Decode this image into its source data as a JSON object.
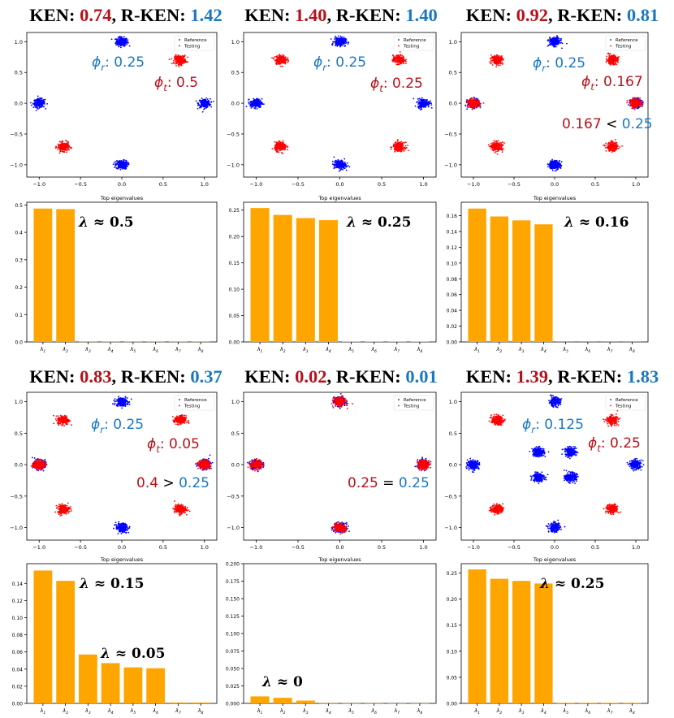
{
  "labels": {
    "ken": "KEN: ",
    "rken": "R-KEN: ",
    "sep": ", "
  },
  "colors": {
    "reference": "#0000ff",
    "testing": "#ff0000",
    "bar": "#ffa500",
    "ken_value": "#b5121b",
    "rken_value": "#1a78c2",
    "annotation_black": "#000000"
  },
  "chart_data": [
    {
      "type": "scatter",
      "panel": "row1-col1",
      "title": {
        "ken": "0.74",
        "rken": "1.42"
      },
      "legend": [
        "Reference",
        "Testing"
      ],
      "legend_position": "top-right",
      "xlim": [
        -1.15,
        1.15
      ],
      "ylim": [
        -1.2,
        1.15
      ],
      "xticks": [
        "-1.0",
        "-0.5",
        "0.0",
        "0.5",
        "1.0"
      ],
      "yticks": [
        "-1.0",
        "-0.5",
        "0.0",
        "0.5",
        "1.0"
      ],
      "reference_clusters": [
        [
          0,
          1
        ],
        [
          -1,
          0
        ],
        [
          1,
          0
        ],
        [
          0,
          -1
        ]
      ],
      "testing_clusters": [
        [
          0.707,
          0.707
        ],
        [
          -0.707,
          -0.707
        ]
      ],
      "annotations": [
        "ϕr: 0.25",
        "ϕt: 0.5"
      ]
    },
    {
      "type": "scatter",
      "panel": "row1-col2",
      "title": {
        "ken": "1.40",
        "rken": "1.40"
      },
      "legend": [
        "Reference",
        "Testing"
      ],
      "legend_position": "top-right",
      "xlim": [
        -1.15,
        1.15
      ],
      "ylim": [
        -1.2,
        1.15
      ],
      "xticks": [
        "-1.0",
        "-0.5",
        "0.0",
        "0.5",
        "1.0"
      ],
      "yticks": [
        "-1.0",
        "-0.5",
        "0.0",
        "0.5",
        "1.0"
      ],
      "reference_clusters": [
        [
          0,
          1
        ],
        [
          -1,
          0
        ],
        [
          1,
          0
        ],
        [
          0,
          -1
        ]
      ],
      "testing_clusters": [
        [
          0.707,
          0.707
        ],
        [
          -0.707,
          0.707
        ],
        [
          -0.707,
          -0.707
        ],
        [
          0.707,
          -0.707
        ]
      ],
      "annotations": [
        "ϕr: 0.25",
        "ϕt: 0.25"
      ]
    },
    {
      "type": "scatter",
      "panel": "row1-col3",
      "title": {
        "ken": "0.92",
        "rken": "0.81"
      },
      "legend": [
        "Reference",
        "Testing"
      ],
      "legend_position": "top-right",
      "xlim": [
        -1.15,
        1.15
      ],
      "ylim": [
        -1.2,
        1.15
      ],
      "xticks": [
        "-1.0",
        "-0.5",
        "0.0",
        "0.5",
        "1.0"
      ],
      "yticks": [
        "-1.0",
        "-0.5",
        "0.0",
        "0.5",
        "1.0"
      ],
      "reference_clusters": [
        [
          0,
          1
        ],
        [
          -1,
          0
        ],
        [
          1,
          0
        ],
        [
          0,
          -1
        ]
      ],
      "testing_clusters": [
        [
          0.707,
          0.707
        ],
        [
          -0.707,
          0.707
        ],
        [
          -0.707,
          -0.707
        ],
        [
          0.707,
          -0.707
        ],
        [
          -1,
          0
        ],
        [
          1,
          0
        ]
      ],
      "annotations": [
        "ϕr: 0.25",
        "ϕt: 0.167",
        "0.167 < 0.25"
      ]
    },
    {
      "type": "bar",
      "panel": "row2-col1",
      "title": "Top eigenvalues",
      "categories": [
        "λ1",
        "λ2",
        "λ3",
        "λ4",
        "λ5",
        "λ6",
        "λ7",
        "λ8"
      ],
      "values": [
        0.487,
        0.485,
        0.001,
        0.001,
        0.001,
        0.001,
        0.001,
        0.001
      ],
      "ylim": [
        0,
        0.51
      ],
      "yticks": [
        "0.0",
        "0.1",
        "0.2",
        "0.3",
        "0.4",
        "0.5"
      ],
      "annotation": "λ ≈ 0.5"
    },
    {
      "type": "bar",
      "panel": "row2-col2",
      "title": "Top eigenvalues",
      "categories": [
        "λ1",
        "λ2",
        "λ3",
        "λ4",
        "λ5",
        "λ6",
        "λ7",
        "λ8"
      ],
      "values": [
        0.254,
        0.241,
        0.235,
        0.231,
        0.001,
        0.001,
        0.001,
        0.001
      ],
      "ylim": [
        0,
        0.265
      ],
      "yticks": [
        "0.00",
        "0.05",
        "0.10",
        "0.15",
        "0.20",
        "0.25"
      ],
      "annotation": "λ ≈ 0.25"
    },
    {
      "type": "bar",
      "panel": "row2-col3",
      "title": "Top eigenvalues",
      "categories": [
        "λ1",
        "λ2",
        "λ3",
        "λ4",
        "λ5",
        "λ6",
        "λ7",
        "λ8"
      ],
      "values": [
        0.169,
        0.159,
        0.154,
        0.149,
        0.001,
        0.001,
        0.001,
        0.001
      ],
      "ylim": [
        0,
        0.177
      ],
      "yticks": [
        "0.00",
        "0.02",
        "0.04",
        "0.06",
        "0.08",
        "0.10",
        "0.12",
        "0.14",
        "0.16"
      ],
      "annotation": "λ ≈ 0.16"
    },
    {
      "type": "scatter",
      "panel": "row3-col1",
      "title": {
        "ken": "0.83",
        "rken": "0.37"
      },
      "legend": [
        "Reference",
        "Testing"
      ],
      "legend_position": "top-right",
      "xlim": [
        -1.15,
        1.15
      ],
      "ylim": [
        -1.2,
        1.15
      ],
      "xticks": [
        "-1.0",
        "-0.5",
        "0.0",
        "0.5",
        "1.0"
      ],
      "yticks": [
        "-1.0",
        "-0.5",
        "0.0",
        "0.5",
        "1.0"
      ],
      "reference_clusters": [
        [
          0,
          1
        ],
        [
          -1,
          0
        ],
        [
          1,
          0
        ],
        [
          0,
          -1
        ]
      ],
      "testing_clusters": [
        [
          -1,
          0
        ],
        [
          1,
          0
        ],
        [
          0.707,
          0.707
        ],
        [
          -0.707,
          0.707
        ],
        [
          -0.707,
          -0.707
        ],
        [
          0.707,
          -0.707
        ]
      ],
      "annotations": [
        "ϕr: 0.25",
        "ϕt: 0.05",
        "0.4 > 0.25"
      ]
    },
    {
      "type": "scatter",
      "panel": "row3-col2",
      "title": {
        "ken": "0.02",
        "rken": "0.01"
      },
      "legend": [
        "Reference",
        "Testing"
      ],
      "legend_position": "top-right",
      "xlim": [
        -1.15,
        1.15
      ],
      "ylim": [
        -1.2,
        1.15
      ],
      "xticks": [
        "-1.0",
        "-0.5",
        "0.0",
        "0.5",
        "1.0"
      ],
      "yticks": [
        "-1.0",
        "-0.5",
        "0.0",
        "0.5",
        "1.0"
      ],
      "reference_clusters": [
        [
          0,
          1
        ],
        [
          -1,
          0
        ],
        [
          1,
          0
        ],
        [
          0,
          -1
        ]
      ],
      "testing_clusters": [
        [
          0,
          1
        ],
        [
          -1,
          0
        ],
        [
          1,
          0
        ],
        [
          0,
          -1
        ]
      ],
      "annotations": [
        "0.25 = 0.25"
      ]
    },
    {
      "type": "scatter",
      "panel": "row3-col3",
      "title": {
        "ken": "1.39",
        "rken": "1.83"
      },
      "legend": [
        "Reference",
        "Testing"
      ],
      "legend_position": "top-right",
      "xlim": [
        -1.15,
        1.15
      ],
      "ylim": [
        -1.2,
        1.15
      ],
      "xticks": [
        "-1.0",
        "-0.5",
        "0.0",
        "0.5",
        "1.0"
      ],
      "yticks": [
        "-1.0",
        "-0.5",
        "0.0",
        "0.5",
        "1.0"
      ],
      "reference_clusters": [
        [
          0,
          1
        ],
        [
          -1,
          0
        ],
        [
          1,
          0
        ],
        [
          0,
          -1
        ],
        [
          -0.2,
          0.2
        ],
        [
          0.2,
          0.2
        ],
        [
          -0.2,
          -0.2
        ],
        [
          0.2,
          -0.2
        ]
      ],
      "testing_clusters": [
        [
          0.707,
          0.707
        ],
        [
          -0.707,
          0.707
        ],
        [
          -0.707,
          -0.707
        ],
        [
          0.707,
          -0.707
        ]
      ],
      "annotations": [
        "ϕr: 0.125",
        "ϕt: 0.25"
      ]
    },
    {
      "type": "bar",
      "panel": "row4-col1",
      "title": "Top eigenvalues",
      "categories": [
        "λ1",
        "λ2",
        "λ3",
        "λ4",
        "λ5",
        "λ6",
        "λ7",
        "λ8"
      ],
      "values": [
        0.155,
        0.143,
        0.057,
        0.047,
        0.042,
        0.041,
        0.001,
        0.001
      ],
      "ylim": [
        0,
        0.163
      ],
      "yticks": [
        "0.00",
        "0.02",
        "0.04",
        "0.06",
        "0.08",
        "0.10",
        "0.12",
        "0.14"
      ],
      "annotations": [
        "λ ≈ 0.15",
        "λ ≈ 0.05"
      ]
    },
    {
      "type": "bar",
      "panel": "row4-col2",
      "title": "Top eigenvalues",
      "categories": [
        "λ1",
        "λ2",
        "λ3",
        "λ4",
        "λ5",
        "λ6",
        "λ7",
        "λ8"
      ],
      "values": [
        0.01,
        0.008,
        0.004,
        0.0003,
        0.0002,
        0.0002,
        0.0001,
        0.0001
      ],
      "ylim": [
        0,
        0.2
      ],
      "yticks": [
        "0.000",
        "0.025",
        "0.050",
        "0.075",
        "0.100",
        "0.125",
        "0.150",
        "0.175",
        "0.200"
      ],
      "annotation": "λ ≈ 0"
    },
    {
      "type": "bar",
      "panel": "row4-col3",
      "title": "Top eigenvalues",
      "categories": [
        "λ1",
        "λ2",
        "λ3",
        "λ4",
        "λ5",
        "λ6",
        "λ7",
        "λ8"
      ],
      "values": [
        0.257,
        0.239,
        0.235,
        0.23,
        0.001,
        0.001,
        0.001,
        0.001
      ],
      "ylim": [
        0,
        0.268
      ],
      "yticks": [
        "0.00",
        "0.05",
        "0.10",
        "0.15",
        "0.20",
        "0.25"
      ],
      "annotation": "λ ≈ 0.25"
    }
  ]
}
